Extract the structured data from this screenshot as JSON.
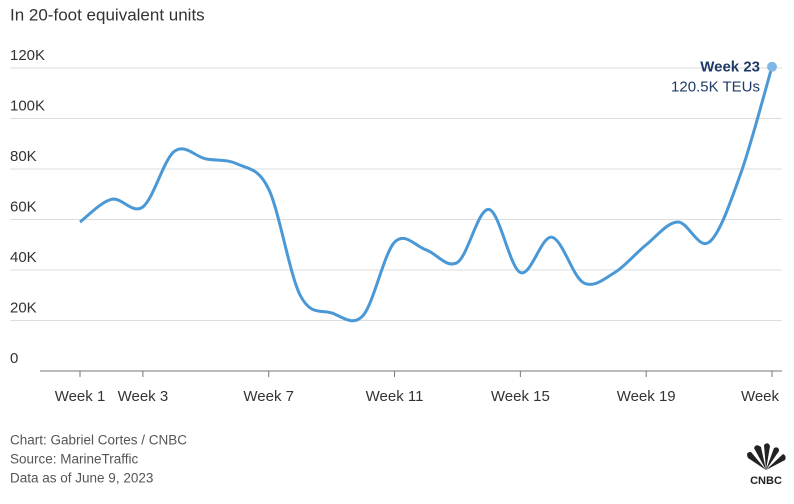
{
  "chart_data": {
    "type": "line",
    "subtitle": "In 20-foot equivalent units",
    "x": [
      1,
      2,
      3,
      4,
      5,
      6,
      7,
      8,
      9,
      10,
      11,
      12,
      13,
      14,
      15,
      16,
      17,
      18,
      19,
      20,
      21,
      22,
      23
    ],
    "series": [
      {
        "name": "TEUs",
        "color": "#4a98d6",
        "values": [
          59,
          68,
          65,
          87,
          84,
          82,
          72,
          30,
          23,
          22,
          51,
          48,
          43,
          64,
          39,
          53,
          35,
          39,
          50,
          59,
          51,
          78,
          120.5
        ]
      }
    ],
    "xlim": [
      1,
      23
    ],
    "xticks": [
      {
        "value": 1,
        "label": "Week 1"
      },
      {
        "value": 3,
        "label": "Week 3"
      },
      {
        "value": 7,
        "label": "Week 7"
      },
      {
        "value": 11,
        "label": "Week 11"
      },
      {
        "value": 15,
        "label": "Week 15"
      },
      {
        "value": 19,
        "label": "Week 19"
      },
      {
        "value": 23,
        "label": "Week"
      }
    ],
    "ylim": [
      0,
      120
    ],
    "yticks": [
      0,
      {
        "value": 20,
        "label": "20K"
      },
      {
        "value": 40,
        "label": "40K"
      },
      {
        "value": 60,
        "label": "60K"
      },
      {
        "value": 80,
        "label": "80K"
      },
      {
        "value": 100,
        "label": "100K"
      },
      {
        "value": 120,
        "label": "120K"
      }
    ],
    "grid": true,
    "annotation": {
      "title": "Week 23",
      "text": "120.5K TEUs"
    },
    "footer": [
      "Chart: Gabriel Cortes / CNBC",
      "Source: MarineTraffic",
      "Data as of June 9, 2023"
    ],
    "logo": "CNBC"
  }
}
